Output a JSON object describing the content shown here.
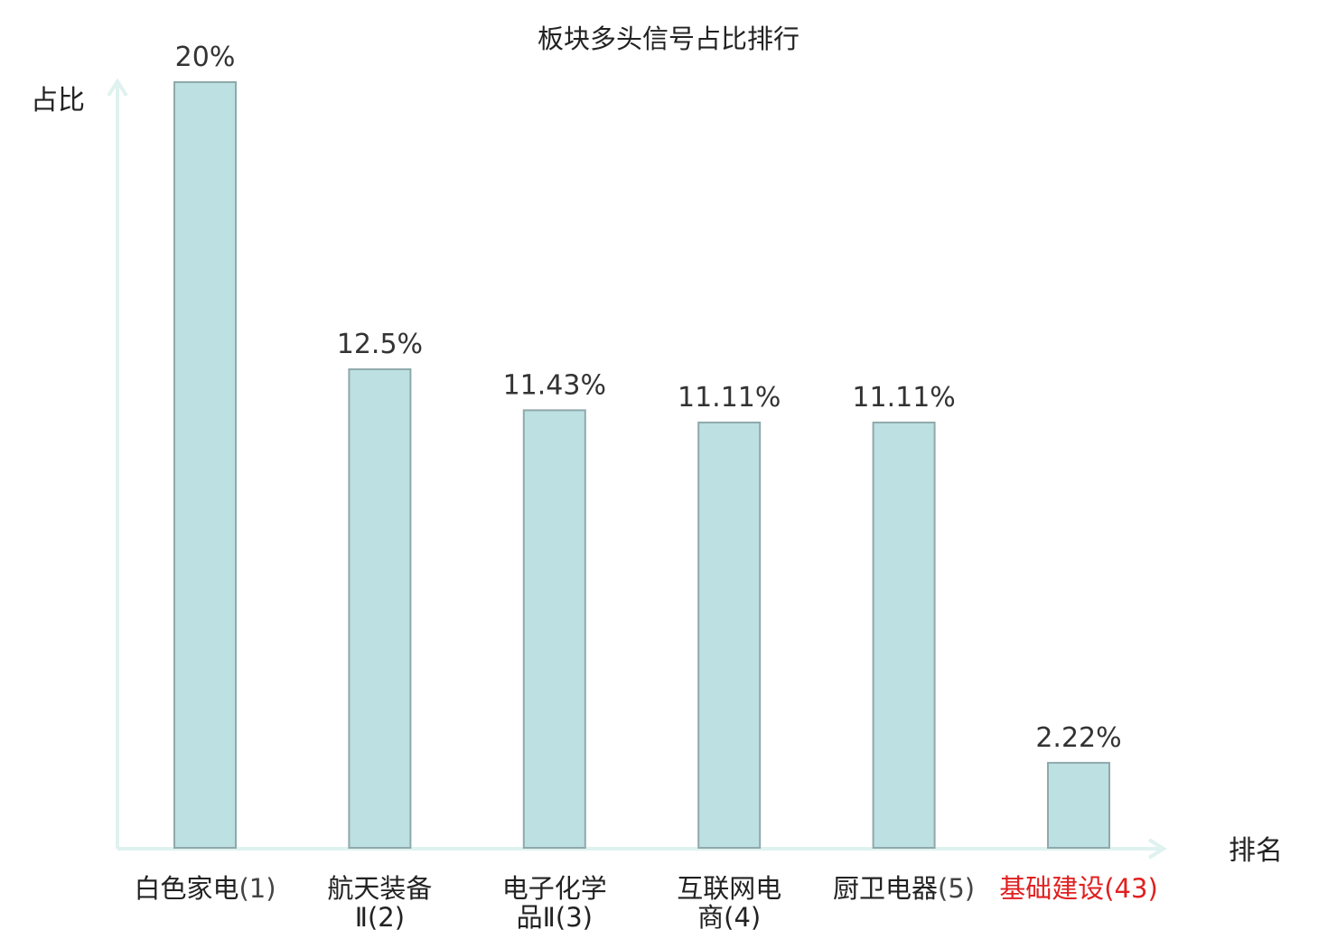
{
  "chart_data": {
    "type": "bar",
    "title": "板块多头信号占比排行",
    "ylabel": "占比",
    "xlabel": "排名",
    "ylim": [
      0,
      20
    ],
    "categories": [
      {
        "lines": [
          "白色家电",
          "(1)"
        ],
        "highlight": false
      },
      {
        "lines": [
          "航天装备",
          "Ⅱ(2)"
        ],
        "highlight": false
      },
      {
        "lines": [
          "电子化学",
          "品Ⅱ(3)"
        ],
        "highlight": false
      },
      {
        "lines": [
          "互联网电",
          "商(4)"
        ],
        "highlight": false
      },
      {
        "lines": [
          "厨卫电器",
          "(5)"
        ],
        "highlight": false
      },
      {
        "lines": [
          "基础建设",
          "(43)"
        ],
        "highlight": true
      }
    ],
    "values": [
      20,
      12.5,
      11.43,
      11.11,
      11.11,
      2.22
    ],
    "value_labels": [
      "20%",
      "12.5%",
      "11.43%",
      "11.11%",
      "11.11%",
      "2.22%"
    ],
    "grid": false,
    "colors": {
      "bar_fill": "#bde0e2",
      "bar_stroke": "#8fa9ab",
      "axis": "#dff2ef",
      "text": "#222222",
      "highlight_text": "#e02020"
    }
  }
}
